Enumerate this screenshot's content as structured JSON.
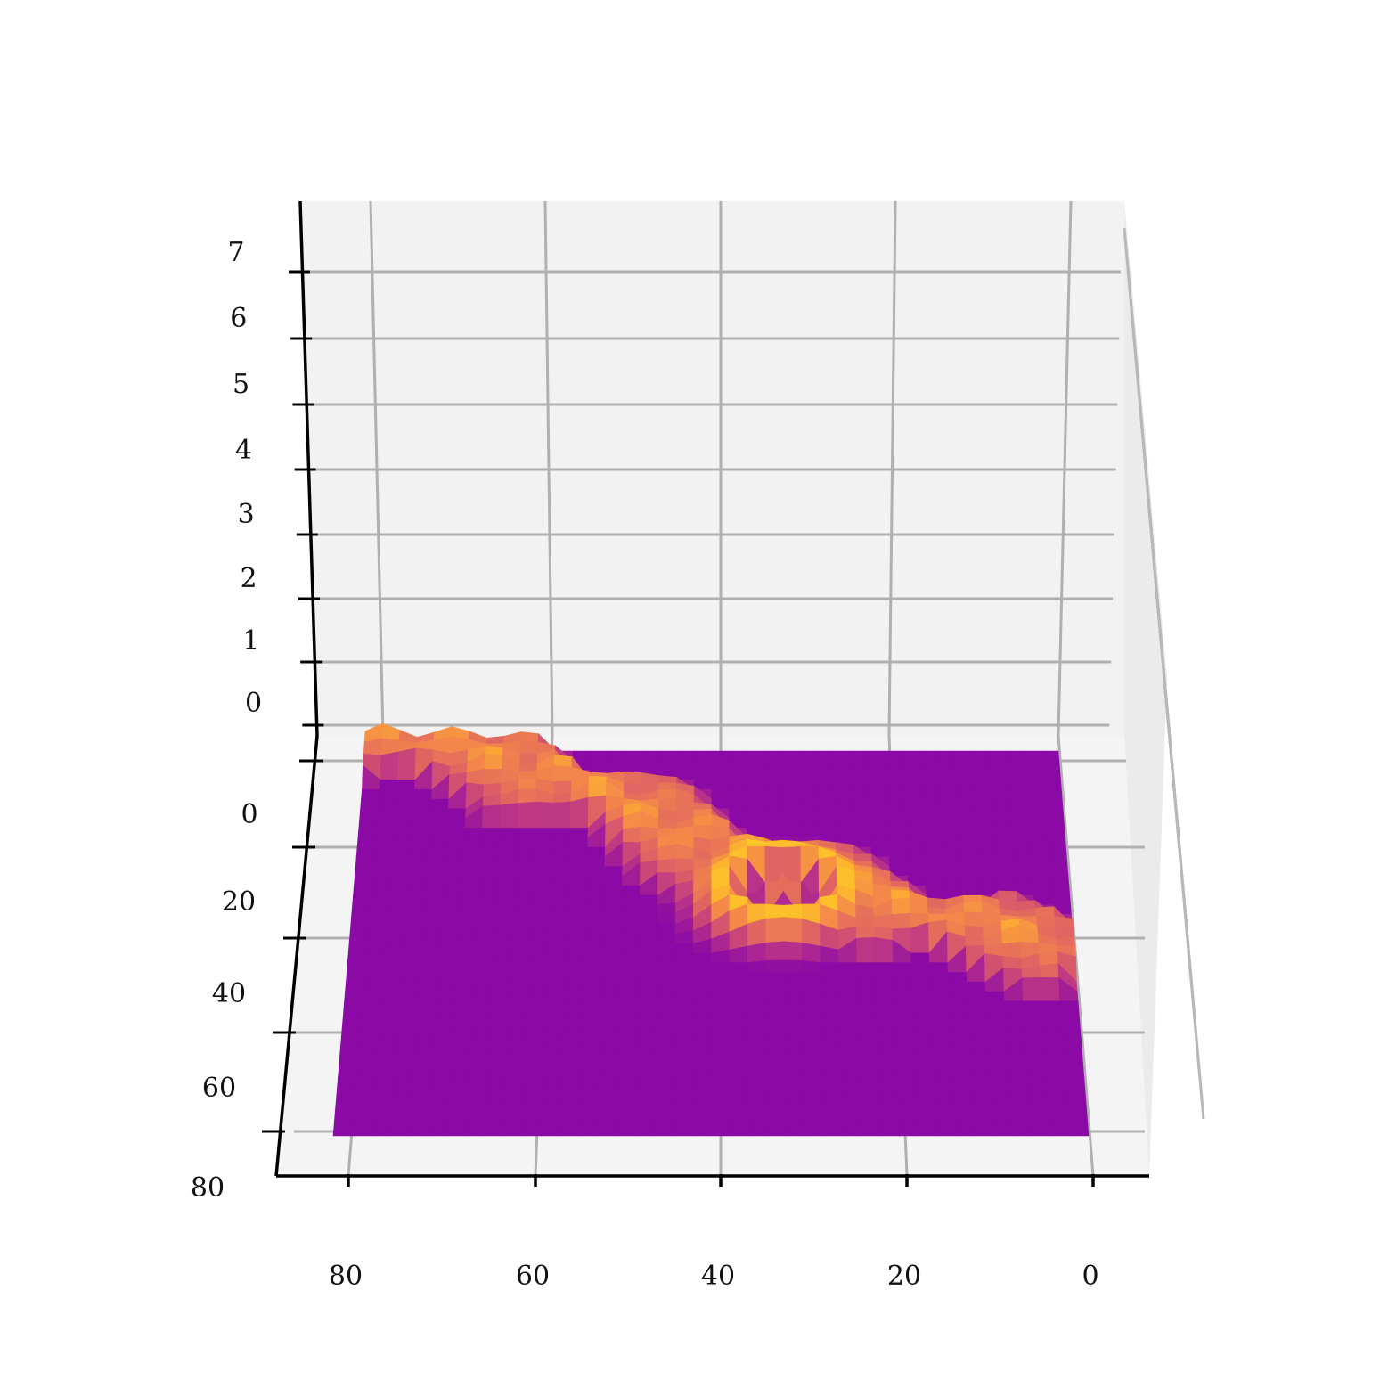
{
  "chart_data": {
    "type": "surface3d",
    "colormap": "plasma",
    "title": "",
    "xlabel": "",
    "ylabel": "",
    "zlabel": "",
    "grid": true,
    "x_ticks": [
      "80",
      "60",
      "40",
      "20",
      "0"
    ],
    "y_ticks": [
      "0",
      "20",
      "40",
      "60",
      "80"
    ],
    "z_ticks": [
      "7",
      "6",
      "5",
      "4",
      "3",
      "2",
      "1",
      "0"
    ],
    "xlim": [
      0,
      85
    ],
    "ylim": [
      0,
      85
    ],
    "zlim": [
      0,
      8
    ],
    "surface_description": "Flat plane z=0 with a raised diagonal band (z≈0.6–1.0) running from the far-left corner to the right edge, a crater near x≈30–35,y≈28–40 with dark (low) interior and a bright central peak.",
    "surface_features": [
      {
        "kind": "band",
        "x": [
          82,
          62,
          45,
          30,
          15,
          5
        ],
        "y": [
          0,
          8,
          22,
          32,
          40,
          45
        ],
        "height": 0.8
      },
      {
        "kind": "rim",
        "x": 34,
        "y": 34,
        "radius": 9,
        "height": 1.3
      },
      {
        "kind": "pit",
        "x": 34,
        "y": 34,
        "radius": 6,
        "depth": -1.5
      },
      {
        "kind": "peak",
        "x": 34,
        "y": 34,
        "height": 1.0
      }
    ]
  }
}
